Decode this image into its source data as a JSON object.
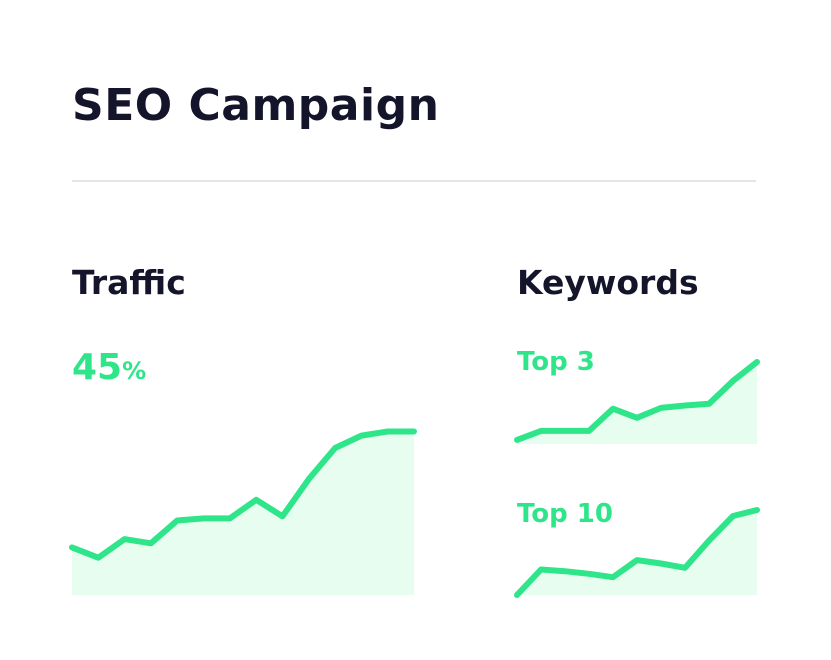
{
  "title": "SEO Campaign",
  "traffic": {
    "label": "Traffic",
    "value": "45",
    "unit": "%"
  },
  "keywords": {
    "label": "Keywords",
    "top3_label": "Top 3",
    "top10_label": "Top 10"
  },
  "colors": {
    "accent": "#2ee58a",
    "fill": "#e6fdf0",
    "text": "#14142b",
    "divider": "#e6e6ea"
  },
  "chart_data": [
    {
      "type": "area",
      "name": "traffic",
      "x": [
        0,
        1,
        2,
        3,
        4,
        5,
        6,
        7,
        8,
        9,
        10,
        11,
        12,
        13
      ],
      "values": [
        23,
        18,
        27,
        25,
        36,
        37,
        37,
        46,
        38,
        56,
        71,
        77,
        79,
        79
      ],
      "ylim": [
        0,
        100
      ]
    },
    {
      "type": "area",
      "name": "top3",
      "x": [
        0,
        1,
        2,
        3,
        4,
        5,
        6,
        7,
        8,
        9,
        10
      ],
      "values": [
        5,
        16,
        16,
        16,
        43,
        32,
        44,
        47,
        49,
        77,
        100
      ],
      "ylim": [
        0,
        100
      ]
    },
    {
      "type": "area",
      "name": "top10",
      "x": [
        0,
        1,
        2,
        3,
        4,
        5,
        6,
        7,
        8,
        9,
        10
      ],
      "values": [
        0,
        30,
        28,
        25,
        21,
        41,
        37,
        32,
        64,
        93,
        100
      ],
      "ylim": [
        0,
        100
      ]
    }
  ]
}
